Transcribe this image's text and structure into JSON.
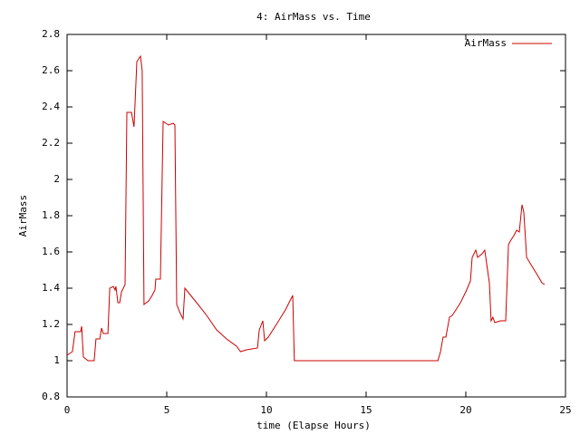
{
  "chart_data": {
    "type": "line",
    "title": "4: AirMass vs. Time",
    "x_label": "time (Elapse Hours)",
    "y_label": "AirMass",
    "x": [
      0,
      0.27,
      0.4,
      0.68,
      0.73,
      0.82,
      1.05,
      1.36,
      1.45,
      1.64,
      1.73,
      1.82,
      2.05,
      2.14,
      2.32,
      2.41,
      2.45,
      2.55,
      2.64,
      2.73,
      2.91,
      3.0,
      3.23,
      3.36,
      3.5,
      3.68,
      3.77,
      3.86,
      4.09,
      4.27,
      4.41,
      4.45,
      4.68,
      4.82,
      5.09,
      5.32,
      5.41,
      5.5,
      5.68,
      5.82,
      5.91,
      6.5,
      7.0,
      7.5,
      8.0,
      8.5,
      8.7,
      9.0,
      9.55,
      9.64,
      9.82,
      9.91,
      10.09,
      10.5,
      10.95,
      11.32,
      11.4,
      18.6,
      18.73,
      18.86,
      19.0,
      19.18,
      19.32,
      19.5,
      19.73,
      20.0,
      20.23,
      20.32,
      20.5,
      20.59,
      20.82,
      20.95,
      21.09,
      21.18,
      21.27,
      21.36,
      21.45,
      21.73,
      22.0,
      22.14,
      22.23,
      22.41,
      22.55,
      22.68,
      22.82,
      22.91,
      23.05,
      23.27,
      23.55,
      23.82,
      23.95
    ],
    "series": [
      {
        "name": "AirMass",
        "color": "#cc0000",
        "values": [
          1.03,
          1.05,
          1.16,
          1.16,
          1.19,
          1.02,
          1.0,
          1.0,
          1.12,
          1.12,
          1.18,
          1.15,
          1.15,
          1.4,
          1.41,
          1.39,
          1.41,
          1.32,
          1.32,
          1.38,
          1.42,
          2.37,
          2.37,
          2.29,
          2.65,
          2.68,
          2.6,
          1.31,
          1.33,
          1.36,
          1.39,
          1.45,
          1.45,
          2.32,
          2.3,
          2.31,
          2.3,
          1.31,
          1.26,
          1.23,
          1.4,
          1.32,
          1.25,
          1.17,
          1.12,
          1.08,
          1.05,
          1.06,
          1.07,
          1.17,
          1.22,
          1.11,
          1.13,
          1.2,
          1.28,
          1.36,
          1.0,
          1.0,
          1.05,
          1.13,
          1.13,
          1.24,
          1.25,
          1.28,
          1.32,
          1.38,
          1.44,
          1.57,
          1.61,
          1.57,
          1.59,
          1.61,
          1.5,
          1.43,
          1.22,
          1.24,
          1.21,
          1.22,
          1.22,
          1.64,
          1.66,
          1.69,
          1.72,
          1.71,
          1.86,
          1.82,
          1.57,
          1.53,
          1.48,
          1.43,
          1.42
        ]
      }
    ],
    "xlim": [
      0,
      25
    ],
    "xticks": [
      0,
      5,
      10,
      15,
      20,
      25
    ],
    "ylim": [
      0.8,
      2.8
    ],
    "yticks": [
      0.8,
      1,
      1.2,
      1.4,
      1.6,
      1.8,
      2,
      2.2,
      2.4,
      2.6,
      2.8
    ],
    "legend": "upper right"
  }
}
